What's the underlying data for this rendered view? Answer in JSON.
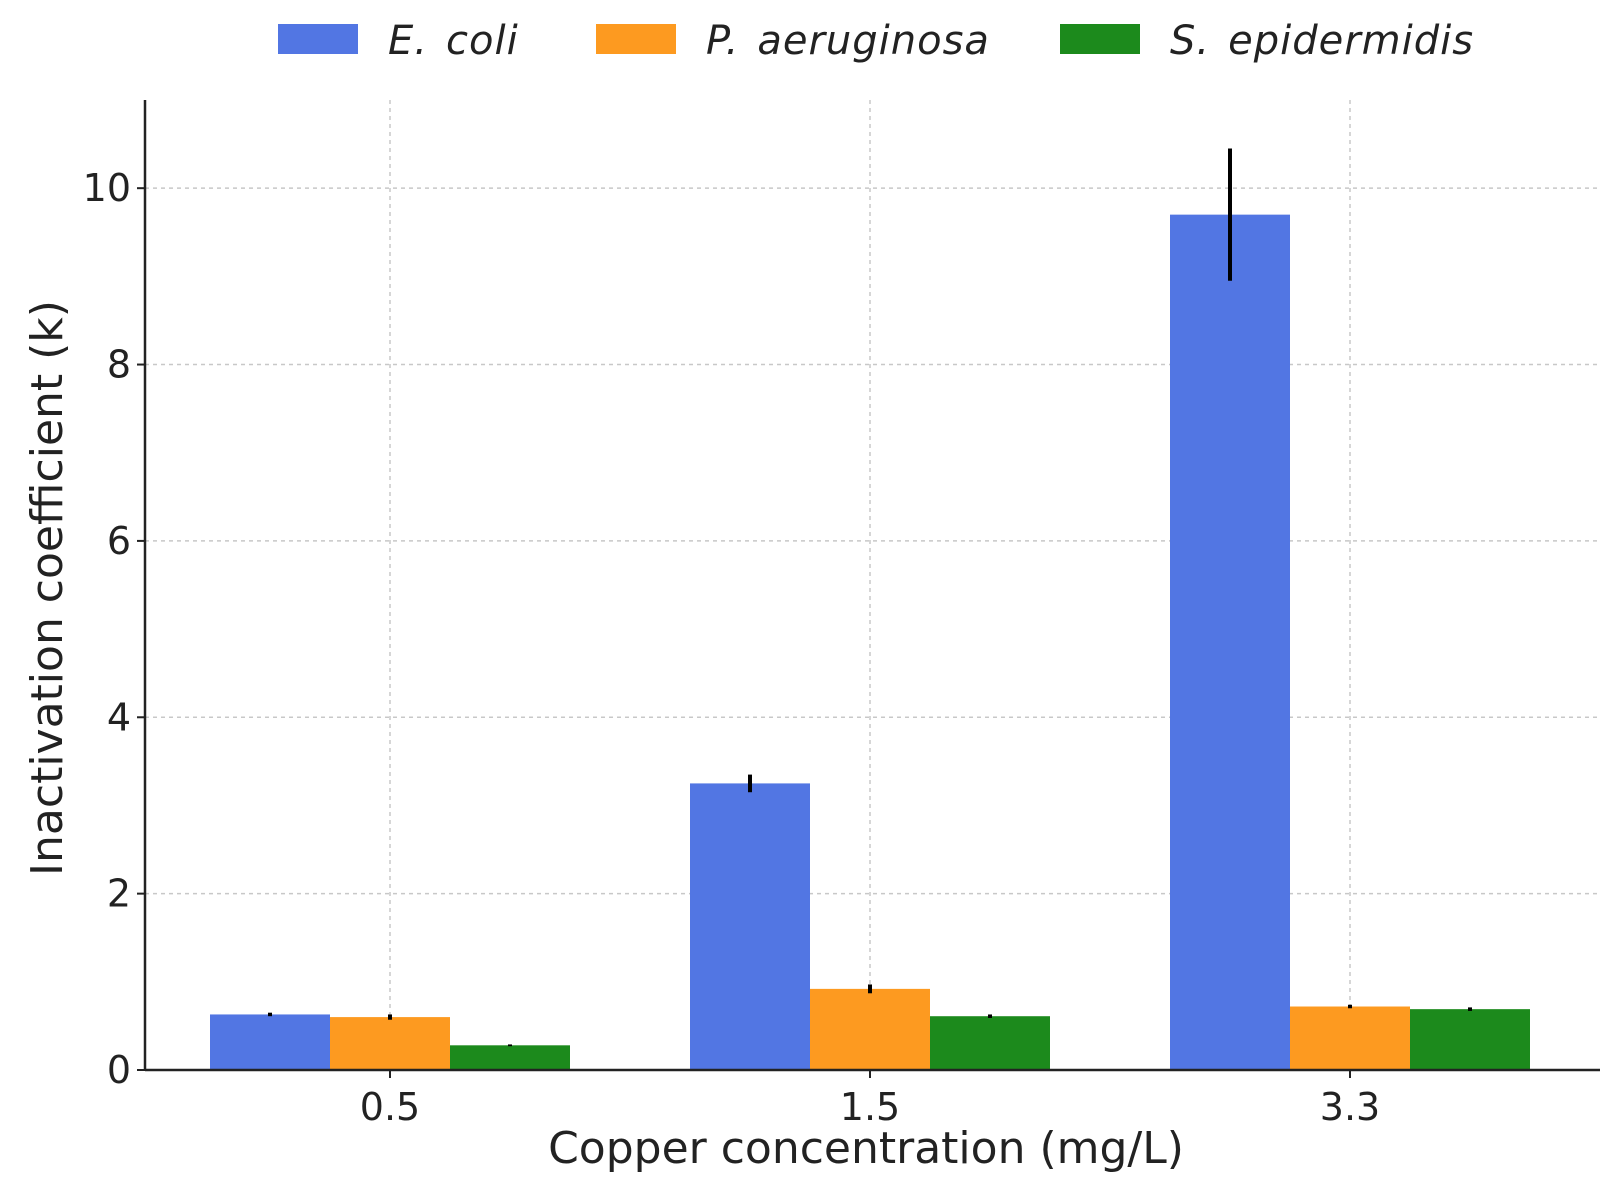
{
  "chart_data": {
    "type": "bar",
    "title": "",
    "xlabel": "Copper concentration (mg/L)",
    "ylabel": "Inactivation coefficient (k)",
    "categories": [
      "0.5",
      "1.5",
      "3.3"
    ],
    "ylim": [
      0,
      11
    ],
    "yticks": [
      0,
      2,
      4,
      6,
      8,
      10
    ],
    "ytick_labels": [
      "0",
      "2",
      "4",
      "6",
      "8",
      "10"
    ],
    "grid": true,
    "legend_position": "top",
    "series": [
      {
        "name": "E. coli",
        "label_parts": [
          "E.",
          "coli"
        ],
        "color": "#5276e3",
        "values": [
          0.63,
          3.25,
          9.7
        ],
        "errors": [
          0.02,
          0.1,
          0.75
        ]
      },
      {
        "name": "P. aeruginosa",
        "label_parts": [
          "P.",
          "aeruginosa"
        ],
        "color": "#fd9a20",
        "values": [
          0.6,
          0.92,
          0.72
        ],
        "errors": [
          0.03,
          0.05,
          0.02
        ]
      },
      {
        "name": "S. epidermidis",
        "label_parts": [
          "S.",
          "epidermidis"
        ],
        "color": "#1c8a1c",
        "values": [
          0.28,
          0.61,
          0.69
        ],
        "errors": [
          0.01,
          0.02,
          0.02
        ]
      }
    ]
  }
}
